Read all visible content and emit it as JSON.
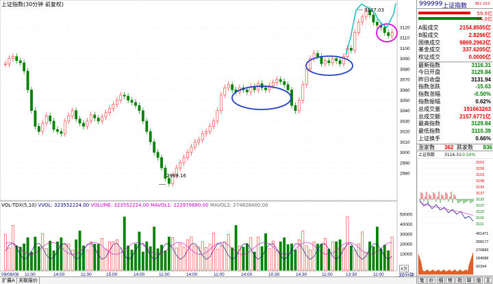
{
  "chart_title": "上证指数(30分钟 前复权)",
  "price_scale": [
    "3120",
    "3110",
    "3100",
    "3090",
    "3080",
    "3070",
    "3060",
    "3050",
    "3040",
    "3030",
    "3020",
    "3010",
    "3000",
    "2990",
    "2980"
  ],
  "annotations": {
    "high": "3137.03",
    "low": "2969.16"
  },
  "volume_header": {
    "title": "VOL-TDX(5,10)",
    "vvol": "VVOL: 323552224.00",
    "volume": "VOLUME: 323552224.00",
    "mavol1": "MAVOL1: 222979680.00",
    "mavol2": "MAVOL2: 274828400.00"
  },
  "volume_scale": [
    "50000",
    "40000",
    "30000",
    "20000",
    "10000"
  ],
  "volume_unit": "X万",
  "time_axis": [
    "09/08/08",
    "11:00",
    "14:00",
    "11:00",
    "15:00",
    "14:00",
    "11:00",
    "14:00",
    "11:00",
    "14:00",
    "10:30",
    "14:30",
    "11:00",
    "13:30",
    "11:00"
  ],
  "time_axis_right": "30分钟",
  "bottom_tabs": [
    "扩展A",
    "关联报价"
  ],
  "side": {
    "code": "999999",
    "name": "上证指数",
    "flag": "861 XX3",
    "buy_sell": [
      "59.0亿",
      "74.0亿"
    ],
    "rows": [
      {
        "label": "A股成交",
        "value": "2154.8505亿",
        "color": "red"
      },
      {
        "label": "B股成交",
        "value": "2.8266亿",
        "color": "red"
      },
      {
        "label": "国债成交",
        "value": "9869.2963亿",
        "color": "red"
      },
      {
        "label": "基金成交",
        "value": "337.6205亿",
        "color": "red"
      },
      {
        "label": "权证成交",
        "value": "0.0000亿",
        "color": "red"
      },
      {
        "label": "最新指数",
        "value": "3116.31",
        "color": "green"
      },
      {
        "label": "今日开盘",
        "value": "3129.84",
        "color": "green"
      },
      {
        "label": "昨日收盘",
        "value": "3131.94",
        "color": "black"
      },
      {
        "label": "指数涨跌",
        "value": "-15.63",
        "color": "green"
      },
      {
        "label": "指数涨幅",
        "value": "-0.50%",
        "color": "green"
      },
      {
        "label": "指数振幅",
        "value": "0.62%",
        "color": "black"
      },
      {
        "label": "总成交量",
        "value": "191663263",
        "color": "red"
      },
      {
        "label": "总成交额",
        "value": "2157.6771亿",
        "color": "red"
      },
      {
        "label": "最高指数",
        "value": "3129.84",
        "color": "green"
      },
      {
        "label": "最低指数",
        "value": "3110.39",
        "color": "green"
      },
      {
        "label": "上证换手",
        "value": "0.66%",
        "color": "black"
      }
    ],
    "up_label": "涨家数",
    "up_value": "362",
    "down_label": "跌家数",
    "down_value": "836",
    "mini_title": "上证指数",
    "mini_price": "3116.31",
    "mini_change": "-0.50%",
    "mini_scale": [
      "3163",
      "3158",
      "3153",
      "3148",
      "3142",
      "3137",
      "3132",
      "3127",
      "3122",
      "3116",
      "3111"
    ],
    "mini_vol_scale": [
      "401471",
      "308177",
      "276883",
      "184588",
      "92294"
    ],
    "footer_tabs": [
      "笔",
      "价",
      "细",
      "势",
      "指",
      "联",
      "值",
      "主"
    ]
  },
  "colors": {
    "up": "#ff3030",
    "down": "#008000",
    "ma5": "#000080",
    "ma10": "#cc00cc",
    "circle_blue": "#2040c0",
    "circle_pink": "#e000e0",
    "cyan_line": "#20c0c0"
  }
}
